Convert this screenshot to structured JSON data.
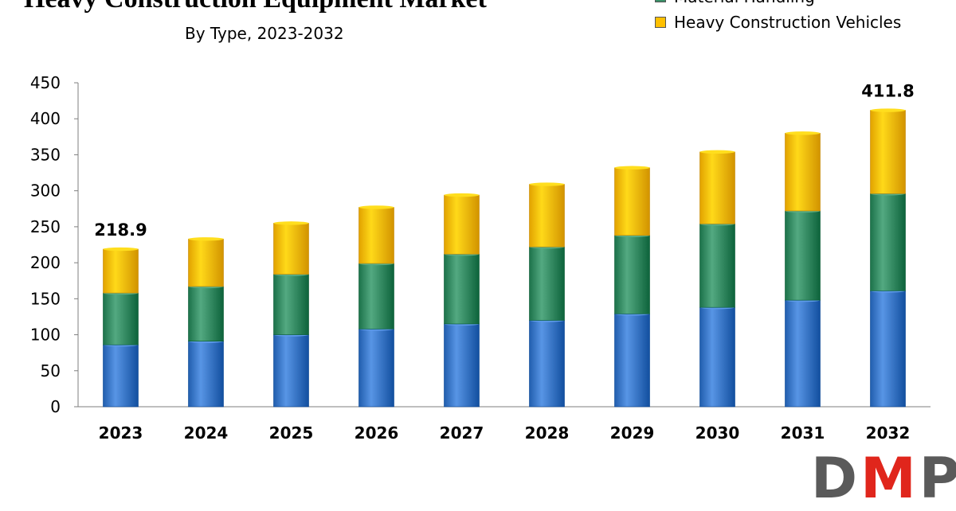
{
  "chart_data": {
    "type": "bar",
    "stacked": true,
    "title": "Heavy Construction Equipment Market",
    "subtitle": "By Type, 2023-2032",
    "categories": [
      "2023",
      "2024",
      "2025",
      "2026",
      "2027",
      "2028",
      "2029",
      "2030",
      "2031",
      "2032"
    ],
    "series": [
      {
        "name": "",
        "color": "#3f7ccc",
        "values": [
          86,
          91,
          100,
          108,
          115,
          120,
          129,
          138,
          148,
          161
        ]
      },
      {
        "name": "Material Handling",
        "color": "#3a9068",
        "values": [
          72,
          76,
          84,
          91,
          97,
          102,
          109,
          116,
          124,
          135
        ]
      },
      {
        "name": "Heavy Construction Vehicles",
        "color": "#ffc000",
        "values": [
          60.9,
          66,
          71,
          78,
          82,
          87,
          94,
          100,
          108,
          115.8
        ]
      }
    ],
    "totals": [
      218.9,
      233,
      255,
      277,
      294,
      309,
      332,
      354,
      380,
      411.8
    ],
    "data_labels": [
      {
        "category": "2023",
        "text": "218.9"
      },
      {
        "category": "2032",
        "text": "411.8"
      }
    ],
    "ylim": [
      0,
      450
    ],
    "yticks": [
      0,
      50,
      100,
      150,
      200,
      250,
      300,
      350,
      400,
      450
    ],
    "xlabel": "",
    "ylabel": "",
    "grid": false,
    "legend_position": "top-right"
  },
  "legend": {
    "items": [
      {
        "label": "Material Handling",
        "color": "#3a9068"
      },
      {
        "label": "Heavy Construction Vehicles",
        "color": "#ffc000"
      }
    ]
  },
  "logo": {
    "text_start": "D",
    "text_accent": "M",
    "text_end": "P"
  }
}
